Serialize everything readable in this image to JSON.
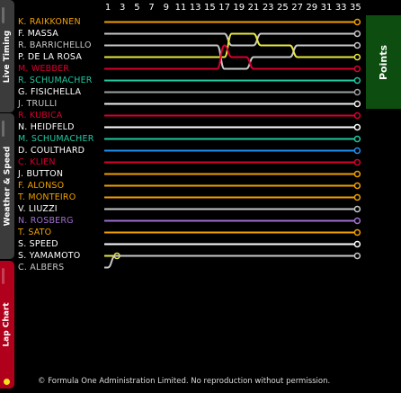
{
  "sidebar": {
    "tabs": [
      {
        "label": "Live Timing"
      },
      {
        "label": "Weather & Speed"
      },
      {
        "label": "Lap Chart"
      }
    ]
  },
  "points_label": "Points",
  "copyright": "© Formula One Administration Limited. No reproduction without permission.",
  "chart_data": {
    "type": "line",
    "title": "",
    "x_tick_labels": [
      "1",
      "3",
      "5",
      "7",
      "9",
      "11",
      "13",
      "15",
      "17",
      "19",
      "21",
      "23",
      "25",
      "27",
      "29",
      "31",
      "33",
      "35"
    ],
    "xlim": [
      1,
      36
    ],
    "ylim": [
      1,
      22
    ],
    "categories": [
      "K. RAIKKONEN",
      "F. MASSA",
      "R. BARRICHELLO",
      "P. DE LA ROSA",
      "M. WEBBER",
      "R. SCHUMACHER",
      "G. FISICHELLA",
      "J. TRULLI",
      "R. KUBICA",
      "N. HEIDFELD",
      "M. SCHUMACHER",
      "D. COULTHARD",
      "C. KLIEN",
      "J. BUTTON",
      "F. ALONSO",
      "T. MONTEIRO",
      "V. LIUZZI",
      "N. ROSBERG",
      "T. SATO",
      "S. SPEED",
      "S. YAMAMOTO",
      "C. ALBERS"
    ],
    "series": [
      {
        "name": "K. RAIKKONEN",
        "color": "#f0a000",
        "laps": [
          1,
          1,
          1,
          1,
          1,
          1,
          1,
          1,
          1,
          1,
          1,
          1,
          1,
          1,
          1,
          1,
          1,
          1,
          1,
          1,
          1,
          1,
          1,
          1,
          1,
          1,
          1,
          1,
          1,
          1,
          1,
          1,
          1,
          1,
          1
        ],
        "finish": 1
      },
      {
        "name": "F. MASSA",
        "color": "#c8c8c8",
        "laps": [
          2,
          2,
          2,
          2,
          2,
          2,
          2,
          2,
          2,
          2,
          2,
          2,
          2,
          2,
          2,
          2,
          2,
          3,
          3,
          3,
          3,
          2,
          2,
          2,
          2,
          2,
          2,
          2,
          2,
          2,
          2,
          2,
          2,
          2,
          2
        ],
        "finish": 2
      },
      {
        "name": "R. BARRICHELLO",
        "color": "#c8c8c8",
        "laps": [
          3,
          3,
          3,
          3,
          3,
          3,
          3,
          3,
          3,
          3,
          3,
          3,
          3,
          3,
          3,
          3,
          5,
          5,
          5,
          5,
          4,
          4,
          4,
          4,
          4,
          4,
          3,
          3,
          3,
          3,
          3,
          3,
          3,
          3,
          3
        ],
        "finish": 3
      },
      {
        "name": "P. DE LA ROSA",
        "color": "#e8e840",
        "laps": [
          4,
          4,
          4,
          4,
          4,
          4,
          4,
          4,
          4,
          4,
          4,
          4,
          4,
          4,
          4,
          4,
          4,
          2,
          2,
          2,
          2,
          3,
          3,
          3,
          3,
          3,
          4,
          4,
          4,
          4,
          4,
          4,
          4,
          4,
          4
        ],
        "finish": 4
      },
      {
        "name": "M. WEBBER",
        "color": "#d80030",
        "laps": [
          5,
          5,
          5,
          5,
          5,
          5,
          5,
          5,
          5,
          5,
          5,
          5,
          5,
          5,
          5,
          5,
          3,
          4,
          4,
          4,
          5,
          5,
          5,
          5,
          5,
          5,
          5,
          5,
          5,
          5,
          5,
          5,
          5,
          5,
          5
        ],
        "finish": 5
      },
      {
        "name": "R. SCHUMACHER",
        "color": "#20c8a0",
        "laps": [
          6,
          6,
          6,
          6,
          6,
          6,
          6,
          6,
          6,
          6,
          6,
          6,
          6,
          6,
          6,
          6,
          6,
          6,
          6,
          6,
          6,
          6,
          6,
          6,
          6,
          6,
          6,
          6,
          6,
          6,
          6,
          6,
          6,
          6,
          6
        ],
        "finish": 6
      },
      {
        "name": "G. FISICHELLA",
        "color": "#a0a0a0",
        "laps": [
          7,
          7,
          7,
          7,
          7,
          7,
          7,
          7,
          7,
          7,
          7,
          7,
          7,
          7,
          7,
          7,
          7,
          7,
          7,
          7,
          7,
          7,
          7,
          7,
          7,
          7,
          7,
          7,
          7,
          7,
          7,
          7,
          7,
          7,
          7
        ],
        "finish": 7
      },
      {
        "name": "J. TRULLI",
        "color": "#f0f0f0",
        "laps": [
          8,
          8,
          8,
          8,
          8,
          8,
          8,
          8,
          8,
          8,
          8,
          8,
          8,
          8,
          8,
          8,
          8,
          8,
          8,
          8,
          8,
          8,
          8,
          8,
          8,
          8,
          8,
          8,
          8,
          8,
          8,
          8,
          8,
          8,
          8
        ],
        "finish": 8
      },
      {
        "name": "R. KUBICA",
        "color": "#d80030",
        "laps": [
          9,
          9,
          9,
          9,
          9,
          9,
          9,
          9,
          9,
          9,
          9,
          9,
          9,
          9,
          9,
          9,
          9,
          9,
          9,
          9,
          9,
          9,
          9,
          9,
          9,
          9,
          9,
          9,
          9,
          9,
          9,
          9,
          9,
          9,
          9
        ],
        "finish": 9
      },
      {
        "name": "N. HEIDFELD",
        "color": "#ffffff",
        "laps": [
          10,
          10,
          10,
          10,
          10,
          10,
          10,
          10,
          10,
          10,
          10,
          10,
          10,
          10,
          10,
          10,
          10,
          10,
          10,
          10,
          10,
          10,
          10,
          10,
          10,
          10,
          10,
          10,
          10,
          10,
          10,
          10,
          10,
          10,
          10
        ],
        "finish": 10
      },
      {
        "name": "M. SCHUMACHER",
        "color": "#20c8a0",
        "laps": [
          11,
          11,
          11,
          11,
          11,
          11,
          11,
          11,
          11,
          11,
          11,
          11,
          11,
          11,
          11,
          11,
          11,
          11,
          11,
          11,
          11,
          11,
          11,
          11,
          11,
          11,
          11,
          11,
          11,
          11,
          11,
          11,
          11,
          11,
          11
        ],
        "finish": 11
      },
      {
        "name": "D. COULTHARD",
        "color": "#2090f0",
        "laps": [
          12,
          12,
          12,
          12,
          12,
          12,
          12,
          12,
          12,
          12,
          12,
          12,
          12,
          12,
          12,
          12,
          12,
          12,
          12,
          12,
          12,
          12,
          12,
          12,
          12,
          12,
          12,
          12,
          12,
          12,
          12,
          12,
          12,
          12,
          12
        ],
        "finish": 12
      },
      {
        "name": "C. KLIEN",
        "color": "#d80030",
        "laps": [
          13,
          13,
          13,
          13,
          13,
          13,
          13,
          13,
          13,
          13,
          13,
          13,
          13,
          13,
          13,
          13,
          13,
          13,
          13,
          13,
          13,
          13,
          13,
          13,
          13,
          13,
          13,
          13,
          13,
          13,
          13,
          13,
          13,
          13,
          13
        ],
        "finish": 13
      },
      {
        "name": "J. BUTTON",
        "color": "#f0a000",
        "laps": [
          14,
          14,
          14,
          14,
          14,
          14,
          14,
          14,
          14,
          14,
          14,
          14,
          14,
          14,
          14,
          14,
          14,
          14,
          14,
          14,
          14,
          14,
          14,
          14,
          14,
          14,
          14,
          14,
          14,
          14,
          14,
          14,
          14,
          14,
          14
        ],
        "finish": 14
      },
      {
        "name": "F. ALONSO",
        "color": "#f0a000",
        "laps": [
          15,
          15,
          15,
          15,
          15,
          15,
          15,
          15,
          15,
          15,
          15,
          15,
          15,
          15,
          15,
          15,
          15,
          15,
          15,
          15,
          15,
          15,
          15,
          15,
          15,
          15,
          15,
          15,
          15,
          15,
          15,
          15,
          15,
          15,
          15
        ],
        "finish": 15
      },
      {
        "name": "T. MONTEIRO",
        "color": "#f0a000",
        "laps": [
          16,
          16,
          16,
          16,
          16,
          16,
          16,
          16,
          16,
          16,
          16,
          16,
          16,
          16,
          16,
          16,
          16,
          16,
          16,
          16,
          16,
          16,
          16,
          16,
          16,
          16,
          16,
          16,
          16,
          16,
          16,
          16,
          16,
          16,
          16
        ],
        "finish": null
      },
      {
        "name": "V. LIUZZI",
        "color": "#c8c8c8",
        "laps": [
          17,
          17,
          17,
          17,
          17,
          17,
          17,
          17,
          17,
          17,
          17,
          17,
          17,
          17,
          17,
          17,
          17,
          17,
          17,
          17,
          17,
          17,
          17,
          17,
          17,
          17,
          17,
          17,
          17,
          17,
          17,
          17,
          17,
          17,
          17
        ],
        "finish": null
      },
      {
        "name": "N. ROSBERG",
        "color": "#a070d0",
        "laps": [
          18,
          18,
          18,
          18,
          18,
          18,
          18,
          18,
          18,
          18,
          18,
          18,
          18,
          18,
          18,
          18,
          18,
          18,
          18,
          18,
          18,
          18,
          18,
          18,
          18,
          18,
          18,
          18,
          18,
          18,
          18,
          18,
          18,
          18,
          18
        ],
        "finish": null
      },
      {
        "name": "T. SATO",
        "color": "#f0a000",
        "laps": [
          19,
          19,
          19,
          19,
          19,
          19,
          19,
          19,
          19,
          19,
          19,
          19,
          19,
          19,
          19,
          19,
          19,
          19,
          19,
          19,
          19,
          19,
          19,
          19,
          19,
          19,
          19,
          19,
          19,
          19,
          19,
          19,
          19,
          19,
          19
        ],
        "finish": null
      },
      {
        "name": "S. SPEED",
        "color": "#ffffff",
        "laps": [
          20,
          20,
          20,
          20,
          20,
          20,
          20,
          20,
          20,
          20,
          20,
          20,
          20,
          20,
          20,
          20,
          20,
          20,
          20,
          20,
          20,
          20,
          20,
          20,
          20,
          20,
          20,
          20,
          20,
          20,
          20,
          20,
          20,
          20,
          20
        ],
        "finish": null
      },
      {
        "name": "S. YAMAMOTO",
        "color": "#e8e840",
        "laps": [
          21,
          21
        ],
        "finish": null
      },
      {
        "name": "C. ALBERS",
        "color": "#c8c8c8",
        "laps": [
          22,
          21,
          21,
          21,
          21,
          21,
          21,
          21,
          21,
          21,
          21,
          21,
          21,
          21,
          21,
          21,
          21,
          21,
          21,
          21,
          21,
          21,
          21,
          21,
          21,
          21,
          21,
          21,
          21,
          21,
          21,
          21,
          21,
          21,
          21
        ],
        "finish": null
      }
    ]
  },
  "driver_colors": [
    "#f0a000",
    "#ffffff",
    "#c8c8c8",
    "#ffffff",
    "#d80030",
    "#20c8a0",
    "#ffffff",
    "#c8c8c8",
    "#d80030",
    "#ffffff",
    "#20c8a0",
    "#ffffff",
    "#d80030",
    "#ffffff",
    "#f0a000",
    "#f0a000",
    "#ffffff",
    "#a070d0",
    "#f0a000",
    "#ffffff",
    "#ffffff",
    "#c8c8c8"
  ]
}
